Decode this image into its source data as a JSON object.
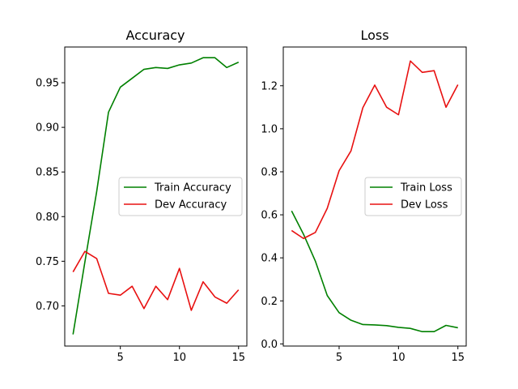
{
  "chart_data": [
    {
      "type": "line",
      "title": "Accuracy",
      "xlabel": "",
      "ylabel": "",
      "x": [
        1,
        2,
        3,
        4,
        5,
        6,
        7,
        8,
        9,
        10,
        11,
        12,
        13,
        14,
        15
      ],
      "xlim": [
        0.3,
        15.7
      ],
      "ylim": [
        0.655,
        0.99
      ],
      "xticks": [
        5,
        10,
        15
      ],
      "yticks": [
        0.7,
        0.75,
        0.8,
        0.85,
        0.9,
        0.95
      ],
      "ytick_labels": [
        "0.70",
        "0.75",
        "0.80",
        "0.85",
        "0.90",
        "0.95"
      ],
      "grid": false,
      "legend": "center-right",
      "series": [
        {
          "name": "Train Accuracy",
          "color": "#008000",
          "values": [
            0.668,
            0.749,
            0.828,
            0.917,
            0.945,
            0.955,
            0.965,
            0.967,
            0.966,
            0.97,
            0.972,
            0.978,
            0.978,
            0.967,
            0.973
          ]
        },
        {
          "name": "Dev Accuracy",
          "color": "#e81010",
          "values": [
            0.738,
            0.761,
            0.753,
            0.714,
            0.712,
            0.722,
            0.697,
            0.722,
            0.707,
            0.742,
            0.695,
            0.727,
            0.71,
            0.703,
            0.718
          ]
        }
      ]
    },
    {
      "type": "line",
      "title": "Loss",
      "xlabel": "",
      "ylabel": "",
      "x": [
        1,
        2,
        3,
        4,
        5,
        6,
        7,
        8,
        9,
        10,
        11,
        12,
        13,
        14,
        15
      ],
      "xlim": [
        0.3,
        15.7
      ],
      "ylim": [
        -0.01,
        1.38
      ],
      "xticks": [
        5,
        10,
        15
      ],
      "yticks": [
        0.0,
        0.2,
        0.4,
        0.6,
        0.8,
        1.0,
        1.2
      ],
      "ytick_labels": [
        "0.0",
        "0.2",
        "0.4",
        "0.6",
        "0.8",
        "1.0",
        "1.2"
      ],
      "grid": false,
      "legend": "center-right",
      "series": [
        {
          "name": "Train Loss",
          "color": "#008000",
          "values": [
            0.618,
            0.51,
            0.385,
            0.225,
            0.145,
            0.11,
            0.09,
            0.088,
            0.085,
            0.077,
            0.072,
            0.057,
            0.057,
            0.086,
            0.075
          ]
        },
        {
          "name": "Dev Loss",
          "color": "#e81010",
          "values": [
            0.527,
            0.49,
            0.518,
            0.63,
            0.805,
            0.897,
            1.098,
            1.203,
            1.1,
            1.065,
            1.315,
            1.262,
            1.27,
            1.1,
            1.205
          ]
        }
      ]
    }
  ]
}
